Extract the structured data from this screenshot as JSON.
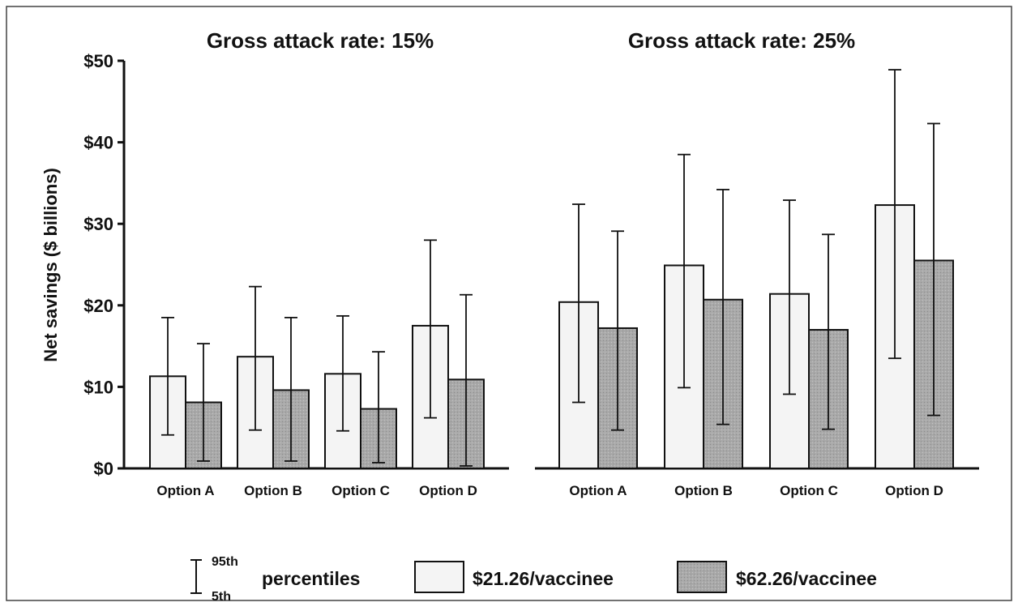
{
  "chart_data": [
    {
      "type": "bar",
      "title": "Gross attack rate: 15%",
      "ylabel": "Net savings ($ billions)",
      "ylim": [
        0,
        50
      ],
      "yticks": [
        "$0",
        "$10",
        "$20",
        "$30",
        "$40",
        "$50"
      ],
      "categories": [
        "Option A",
        "Option B",
        "Option C",
        "Option D"
      ],
      "series": [
        {
          "name": "$21.26/vaccinee",
          "values": [
            11.3,
            13.7,
            11.6,
            17.5
          ],
          "p5": [
            4.1,
            4.7,
            4.6,
            6.2
          ],
          "p95": [
            18.5,
            22.3,
            18.7,
            28.0
          ],
          "color": "#f4f4f4"
        },
        {
          "name": "$62.26/vaccinee",
          "values": [
            8.1,
            9.6,
            7.3,
            10.9
          ],
          "p5": [
            0.9,
            0.9,
            0.7,
            0.3
          ],
          "p95": [
            15.3,
            18.5,
            14.3,
            21.3
          ],
          "color": "#a9a9a9"
        }
      ]
    },
    {
      "type": "bar",
      "title": "Gross attack rate: 25%",
      "ylim": [
        0,
        50
      ],
      "categories": [
        "Option A",
        "Option B",
        "Option C",
        "Option D"
      ],
      "series": [
        {
          "name": "$21.26/vaccinee",
          "values": [
            20.4,
            24.9,
            21.4,
            32.3
          ],
          "p5": [
            8.1,
            9.9,
            9.1,
            13.5
          ],
          "p95": [
            32.4,
            38.5,
            32.9,
            48.9
          ],
          "color": "#f4f4f4"
        },
        {
          "name": "$62.26/vaccinee",
          "values": [
            17.2,
            20.7,
            17.0,
            25.5
          ],
          "p5": [
            4.7,
            5.4,
            4.8,
            6.5
          ],
          "p95": [
            29.1,
            34.2,
            28.7,
            42.3
          ],
          "color": "#a9a9a9"
        }
      ]
    }
  ],
  "legend": {
    "percentile_high": "95th",
    "percentile_low": "5th",
    "percentiles_label": "percentiles",
    "series_labels": [
      "$21.26/vaccinee",
      "$62.26/vaccinee"
    ]
  },
  "colors": {
    "light_bar": "#f4f4f4",
    "dark_bar": "#a9a9a9",
    "stroke": "#111111"
  }
}
